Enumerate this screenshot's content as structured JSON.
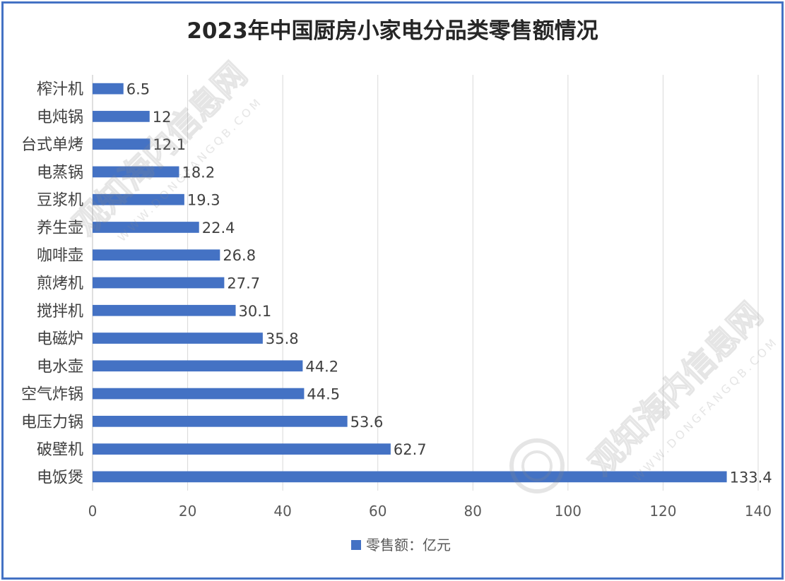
{
  "chart_data": {
    "type": "bar",
    "orientation": "horizontal",
    "title": "2023年中国厨房小家电分品类零售额情况",
    "categories": [
      "榨汁机",
      "电炖锅",
      "台式单烤",
      "电蒸锅",
      "豆浆机",
      "养生壶",
      "咖啡壶",
      "煎烤机",
      "搅拌机",
      "电磁炉",
      "电水壶",
      "空气炸锅",
      "电压力锅",
      "破壁机",
      "电饭煲"
    ],
    "series": [
      {
        "name": "零售额：亿元",
        "values": [
          6.5,
          12,
          12.1,
          18.2,
          19.3,
          22.4,
          26.8,
          27.7,
          30.1,
          35.8,
          44.2,
          44.5,
          53.6,
          62.7,
          133.4
        ],
        "color": "#4472C4"
      }
    ],
    "xlim": [
      0,
      140
    ],
    "x_ticks": [
      0,
      20,
      40,
      60,
      80,
      100,
      120,
      140
    ],
    "grid": true,
    "legend_position": "bottom",
    "data_labels": true
  },
  "colors": {
    "bar": "#4472C4",
    "frame": "#4472C4",
    "grid": "#d9d9d9",
    "text": "#404040"
  },
  "watermark": {
    "text": "观知海内信息网",
    "url": "WWW.DONGFANGQB.COM"
  }
}
